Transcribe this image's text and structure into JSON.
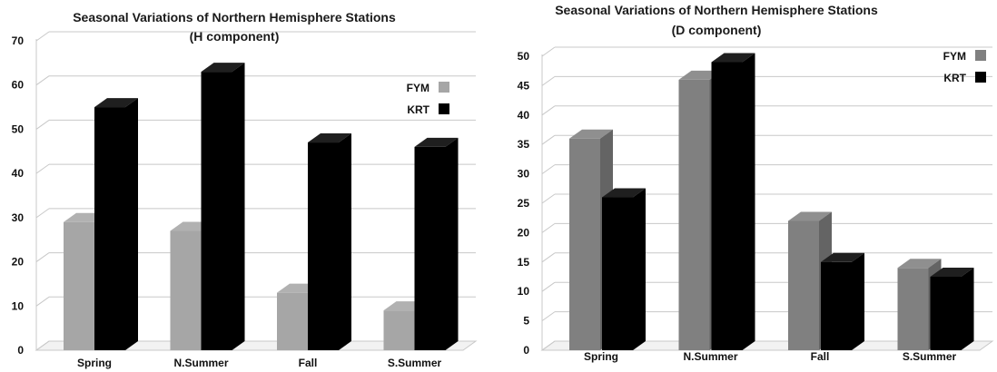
{
  "chart_data": [
    {
      "type": "bar",
      "title": "Seasonal Variations of Northern Hemisphere Stations",
      "subtitle": "(H component)",
      "categories": [
        "Spring",
        "N.Summer",
        "Fall",
        "S.Summer"
      ],
      "series": [
        {
          "name": "FYM",
          "values": [
            29,
            27,
            13,
            9
          ],
          "color": "#a6a6a6"
        },
        {
          "name": "KRT",
          "values": [
            55,
            63,
            47,
            46
          ],
          "color": "#000000"
        }
      ],
      "ylim": [
        0,
        70
      ],
      "yticks": [
        0,
        10,
        20,
        30,
        40,
        50,
        60,
        70
      ],
      "grid": true,
      "legend": "right"
    },
    {
      "type": "bar",
      "title": "Seasonal Variations of Northern Hemisphere Stations",
      "subtitle": "(D component)",
      "categories": [
        "Spring",
        "N.Summer",
        "Fall",
        "S.Summer"
      ],
      "series": [
        {
          "name": "FYM",
          "values": [
            36,
            46,
            22,
            14
          ],
          "color": "#808080"
        },
        {
          "name": "KRT",
          "values": [
            26,
            49,
            15,
            12.5
          ],
          "color": "#000000"
        }
      ],
      "ylim": [
        0,
        50
      ],
      "yticks": [
        0,
        5,
        10,
        15,
        20,
        25,
        30,
        35,
        40,
        45,
        50
      ],
      "grid": true,
      "legend": "top-right"
    }
  ]
}
